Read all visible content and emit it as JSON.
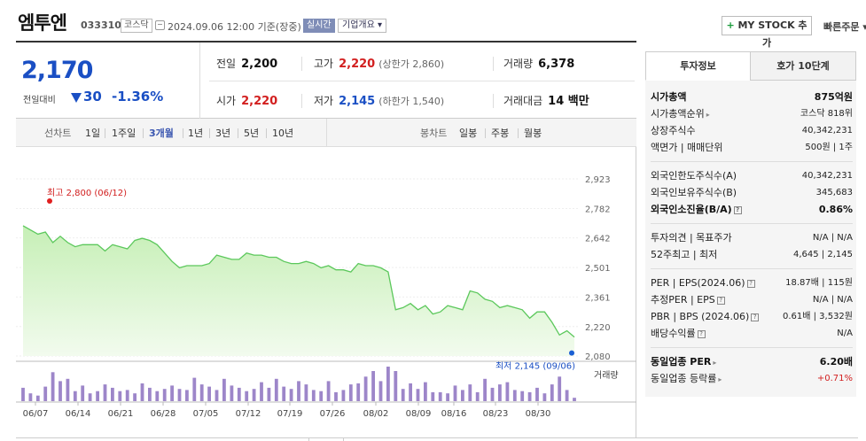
{
  "header": {
    "name": "엠투엔",
    "code": "033310",
    "market": "코스닥",
    "timestamp": "2024.09.06 12:00 기준(장중)",
    "realtime": "실시간",
    "company_info": "기업개요 ▾",
    "mystock_plus": "+",
    "mystock_label": " MY STOCK 추가",
    "quick_order": "빠른주문 ▾"
  },
  "quote": {
    "price": "2,170",
    "change_label": "전일대비",
    "change": "30",
    "change_rate": "-1.36%",
    "prev_close": {
      "label": "전일",
      "value": "2,200"
    },
    "high": {
      "label": "고가",
      "value": "2,220",
      "sub": "(상한가 2,860)"
    },
    "volume": {
      "label": "거래량",
      "value": "6,378"
    },
    "open": {
      "label": "시가",
      "value": "2,220"
    },
    "low": {
      "label": "저가",
      "value": "2,145",
      "sub": "(하한가 1,540)"
    },
    "amount": {
      "label": "거래대금",
      "value": "14 백만"
    }
  },
  "toolbar": {
    "line_chart": "선차트",
    "periods": [
      "1일",
      "1주일",
      "3개월",
      "1년",
      "3년",
      "5년",
      "10년"
    ],
    "active_period": "3개월",
    "candle_chart": "봉차트",
    "candles": [
      "일봉",
      "주봉",
      "월봉"
    ]
  },
  "chart_data": {
    "type": "area",
    "y_ticks": [
      "2,923",
      "2,782",
      "2,642",
      "2,501",
      "2,361",
      "2,220",
      "2,080"
    ],
    "ylim": [
      2080,
      2923
    ],
    "x_ticks": [
      "06/07",
      "06/14",
      "06/21",
      "06/28",
      "07/05",
      "07/12",
      "07/19",
      "07/26",
      "08/02",
      "08/09",
      "08/16",
      "08/23",
      "08/30"
    ],
    "high_annotation": "최고 2,800 (06/12)",
    "low_annotation": "최저 2,145 (09/06)",
    "volume_label": "거래량",
    "colors": {
      "line": "#5cc85c",
      "fill_top": "#c6efb6",
      "fill_bottom": "#f2fbee",
      "bar": "#9d86c9",
      "high_dot": "#e02020",
      "low_dot": "#1a5fd4"
    },
    "series": [
      {
        "values": [
          2700,
          2680,
          2660,
          2670,
          2620,
          2650,
          2620,
          2600,
          2610,
          2610,
          2610,
          2580,
          2610,
          2600,
          2590,
          2630,
          2640,
          2630,
          2610,
          2570,
          2530,
          2500,
          2510,
          2510,
          2510,
          2520,
          2560,
          2550,
          2540,
          2540,
          2570,
          2560,
          2560,
          2550,
          2550,
          2530,
          2520,
          2520,
          2530,
          2520,
          2500,
          2510,
          2490,
          2490,
          2480,
          2520,
          2510,
          2510,
          2500,
          2480,
          2300,
          2310,
          2330,
          2300,
          2320,
          2280,
          2290,
          2320,
          2310,
          2300,
          2390,
          2380,
          2350,
          2340,
          2310,
          2320,
          2310,
          2300,
          2260,
          2290,
          2290,
          2240,
          2180,
          2200,
          2170
        ]
      },
      {
        "values": [
          12,
          7,
          5,
          13,
          26,
          18,
          20,
          9,
          14,
          7,
          9,
          15,
          12,
          9,
          10,
          7,
          16,
          12,
          9,
          11,
          14,
          11,
          10,
          21,
          15,
          13,
          10,
          20,
          14,
          12,
          9,
          11,
          17,
          12,
          20,
          13,
          11,
          18,
          15,
          10,
          9,
          18,
          8,
          10,
          15,
          16,
          22,
          27,
          18,
          31,
          27,
          11,
          16,
          11,
          17,
          8,
          8,
          7,
          14,
          10,
          15,
          8,
          20,
          12,
          15,
          17,
          10,
          9,
          8,
          12,
          7,
          15,
          22,
          10,
          3
        ]
      }
    ]
  },
  "panel": {
    "tab_invest": "투자정보",
    "tab_orderbook": "호가 10단계",
    "market_cap": {
      "label": "시가총액",
      "value": "875억원"
    },
    "cap_rank": {
      "label": "시가총액순위",
      "value": "코스닥 818위"
    },
    "shares": {
      "label": "상장주식수",
      "value": "40,342,231"
    },
    "par": {
      "label": "액면가 | 매매단위",
      "value": "500원 | 1주"
    },
    "foreign_limit": {
      "label": "외국인한도주식수(A)",
      "value": "40,342,231"
    },
    "foreign_hold": {
      "label": "외국인보유주식수(B)",
      "value": "345,683"
    },
    "foreign_ratio": {
      "label": "외국인소진율(B/A)",
      "value": "0.86%"
    },
    "opinion": {
      "label": "투자의견 | 목표주가",
      "value": "N/A | N/A"
    },
    "week52": {
      "label": "52주최고 | 최저",
      "value": "4,645 | 2,145"
    },
    "per_eps": {
      "label": "PER | EPS(2024.06)",
      "value": "18.87배 | 115원"
    },
    "est_per": {
      "label": "추정PER | EPS",
      "value": "N/A | N/A"
    },
    "pbr_bps": {
      "label": "PBR | BPS (2024.06)",
      "value": "0.61배 | 3,532원"
    },
    "dividend": {
      "label": "배당수익률",
      "value": "N/A"
    },
    "industry_per": {
      "label": "동일업종 PER",
      "value": "6.20배"
    },
    "industry_rate": {
      "label": "동일업종 등락률",
      "value": "+0.71%"
    }
  }
}
